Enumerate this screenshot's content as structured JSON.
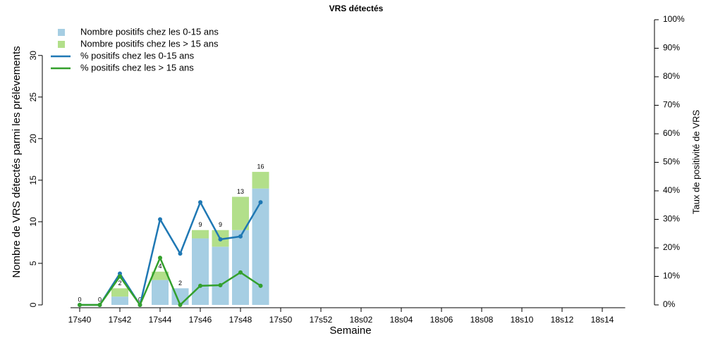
{
  "chart_data": {
    "type": "bar",
    "title": "VRS détectés",
    "x_label": "Semaine",
    "y_label": "Nombre de VRS détectés parmi les prélèvements",
    "y2_label": "Taux de positivité de VRS",
    "categories": [
      "17s40",
      null,
      "17s42",
      null,
      "17s44",
      null,
      "17s46",
      null,
      "17s48",
      null,
      "17s50",
      null,
      "17s52",
      null,
      "18s02",
      null,
      "18s04",
      null,
      "18s06",
      null,
      "18s08",
      null,
      "18s10",
      null,
      "18s12",
      null,
      "18s14",
      null
    ],
    "series": [
      {
        "name": "Nombre positifs chez les 0-15 ans",
        "type": "bar",
        "color": "#a6cee3",
        "values": [
          0,
          0,
          1,
          0,
          3,
          2,
          8,
          7,
          9,
          14,
          null,
          null,
          null,
          null,
          null,
          null,
          null,
          null,
          null,
          null,
          null,
          null,
          null,
          null,
          null,
          null,
          null,
          null
        ]
      },
      {
        "name": "Nombre positifs chez les > 15 ans",
        "type": "bar",
        "color": "#b2df8a",
        "values": [
          0,
          0,
          1,
          0,
          1,
          0,
          1,
          2,
          4,
          2,
          null,
          null,
          null,
          null,
          null,
          null,
          null,
          null,
          null,
          null,
          null,
          null,
          null,
          null,
          null,
          null,
          null,
          null
        ]
      },
      {
        "name": "% positifs chez les 0-15 ans",
        "type": "line",
        "color": "#1f78b4",
        "axis": "y2",
        "values": [
          0,
          0,
          11,
          0,
          30,
          18,
          36,
          23,
          24,
          36,
          null,
          null,
          null,
          null,
          null,
          null,
          null,
          null,
          null,
          null,
          null,
          null,
          null,
          null,
          null,
          null,
          null,
          null
        ]
      },
      {
        "name": "% positifs chez les > 15 ans",
        "type": "line",
        "color": "#33a02c",
        "axis": "y2",
        "values": [
          0,
          0,
          10,
          0,
          16.5,
          0,
          6.7,
          6.9,
          11.4,
          6.7,
          null,
          null,
          null,
          null,
          null,
          null,
          null,
          null,
          null,
          null,
          null,
          null,
          null,
          null,
          null,
          null,
          null,
          null
        ]
      }
    ],
    "totals": [
      0,
      0,
      2,
      0,
      4,
      2,
      9,
      9,
      13,
      16,
      null,
      null,
      null,
      null,
      null,
      null,
      null,
      null,
      null,
      null,
      null,
      null,
      null,
      null,
      null,
      null,
      null,
      null
    ],
    "ylim": [
      0,
      34.3
    ],
    "yticks": [
      0,
      5,
      10,
      15,
      20,
      25,
      30
    ],
    "y2lim": [
      0,
      100
    ],
    "y2ticks": [
      {
        "value": 0,
        "label": "0%"
      },
      {
        "value": 10,
        "label": "10%"
      },
      {
        "value": 20,
        "label": "20%"
      },
      {
        "value": 30,
        "label": "30%"
      },
      {
        "value": 40,
        "label": "40%"
      },
      {
        "value": 50,
        "label": "50%"
      },
      {
        "value": 60,
        "label": "60%"
      },
      {
        "value": 70,
        "label": "70%"
      },
      {
        "value": 80,
        "label": "80%"
      },
      {
        "value": 90,
        "label": "90%"
      },
      {
        "value": 100,
        "label": "100%"
      }
    ],
    "legend": "top-left"
  }
}
